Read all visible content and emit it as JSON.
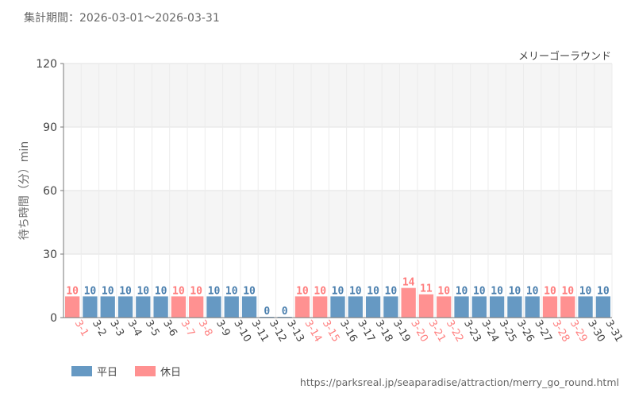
{
  "header": {
    "period": "集計期間：2026-03-01～2026-03-31"
  },
  "source_url": "https://parksreal.jp/seaparadise/attraction/merry_go_round.html",
  "legend": [
    {
      "label": "平日",
      "color": "#6699c3"
    },
    {
      "label": "休日",
      "color": "#ff9191"
    }
  ],
  "chart_data": {
    "type": "bar",
    "title": "メリーゴーラウンド",
    "xlabel": "",
    "ylabel": "待ち時間（分）min",
    "ylim": [
      0,
      120
    ],
    "yticks": [
      0,
      30,
      60,
      90,
      120
    ],
    "grid": true,
    "legend_position": "bottom-left",
    "categories": [
      "3-1",
      "3-2",
      "3-3",
      "3-4",
      "3-5",
      "3-6",
      "3-7",
      "3-8",
      "3-9",
      "3-10",
      "3-11",
      "3-12",
      "3-13",
      "3-14",
      "3-15",
      "3-16",
      "3-17",
      "3-18",
      "3-19",
      "3-20",
      "3-21",
      "3-22",
      "3-23",
      "3-24",
      "3-25",
      "3-26",
      "3-27",
      "3-28",
      "3-29",
      "3-30",
      "3-31"
    ],
    "values": [
      10,
      10,
      10,
      10,
      10,
      10,
      10,
      10,
      10,
      10,
      10,
      0,
      0,
      10,
      10,
      10,
      10,
      10,
      10,
      14,
      11,
      10,
      10,
      10,
      10,
      10,
      10,
      10,
      10,
      10,
      10
    ],
    "day_type": [
      "休日",
      "平日",
      "平日",
      "平日",
      "平日",
      "平日",
      "休日",
      "休日",
      "平日",
      "平日",
      "平日",
      "平日",
      "平日",
      "休日",
      "休日",
      "平日",
      "平日",
      "平日",
      "平日",
      "休日",
      "休日",
      "休日",
      "平日",
      "平日",
      "平日",
      "平日",
      "平日",
      "休日",
      "休日",
      "平日",
      "平日"
    ],
    "colors": {
      "平日": "#6699c3",
      "休日": "#ff9191",
      "平日_label": "#4a7fae",
      "休日_label": "#ff7c7c"
    }
  }
}
